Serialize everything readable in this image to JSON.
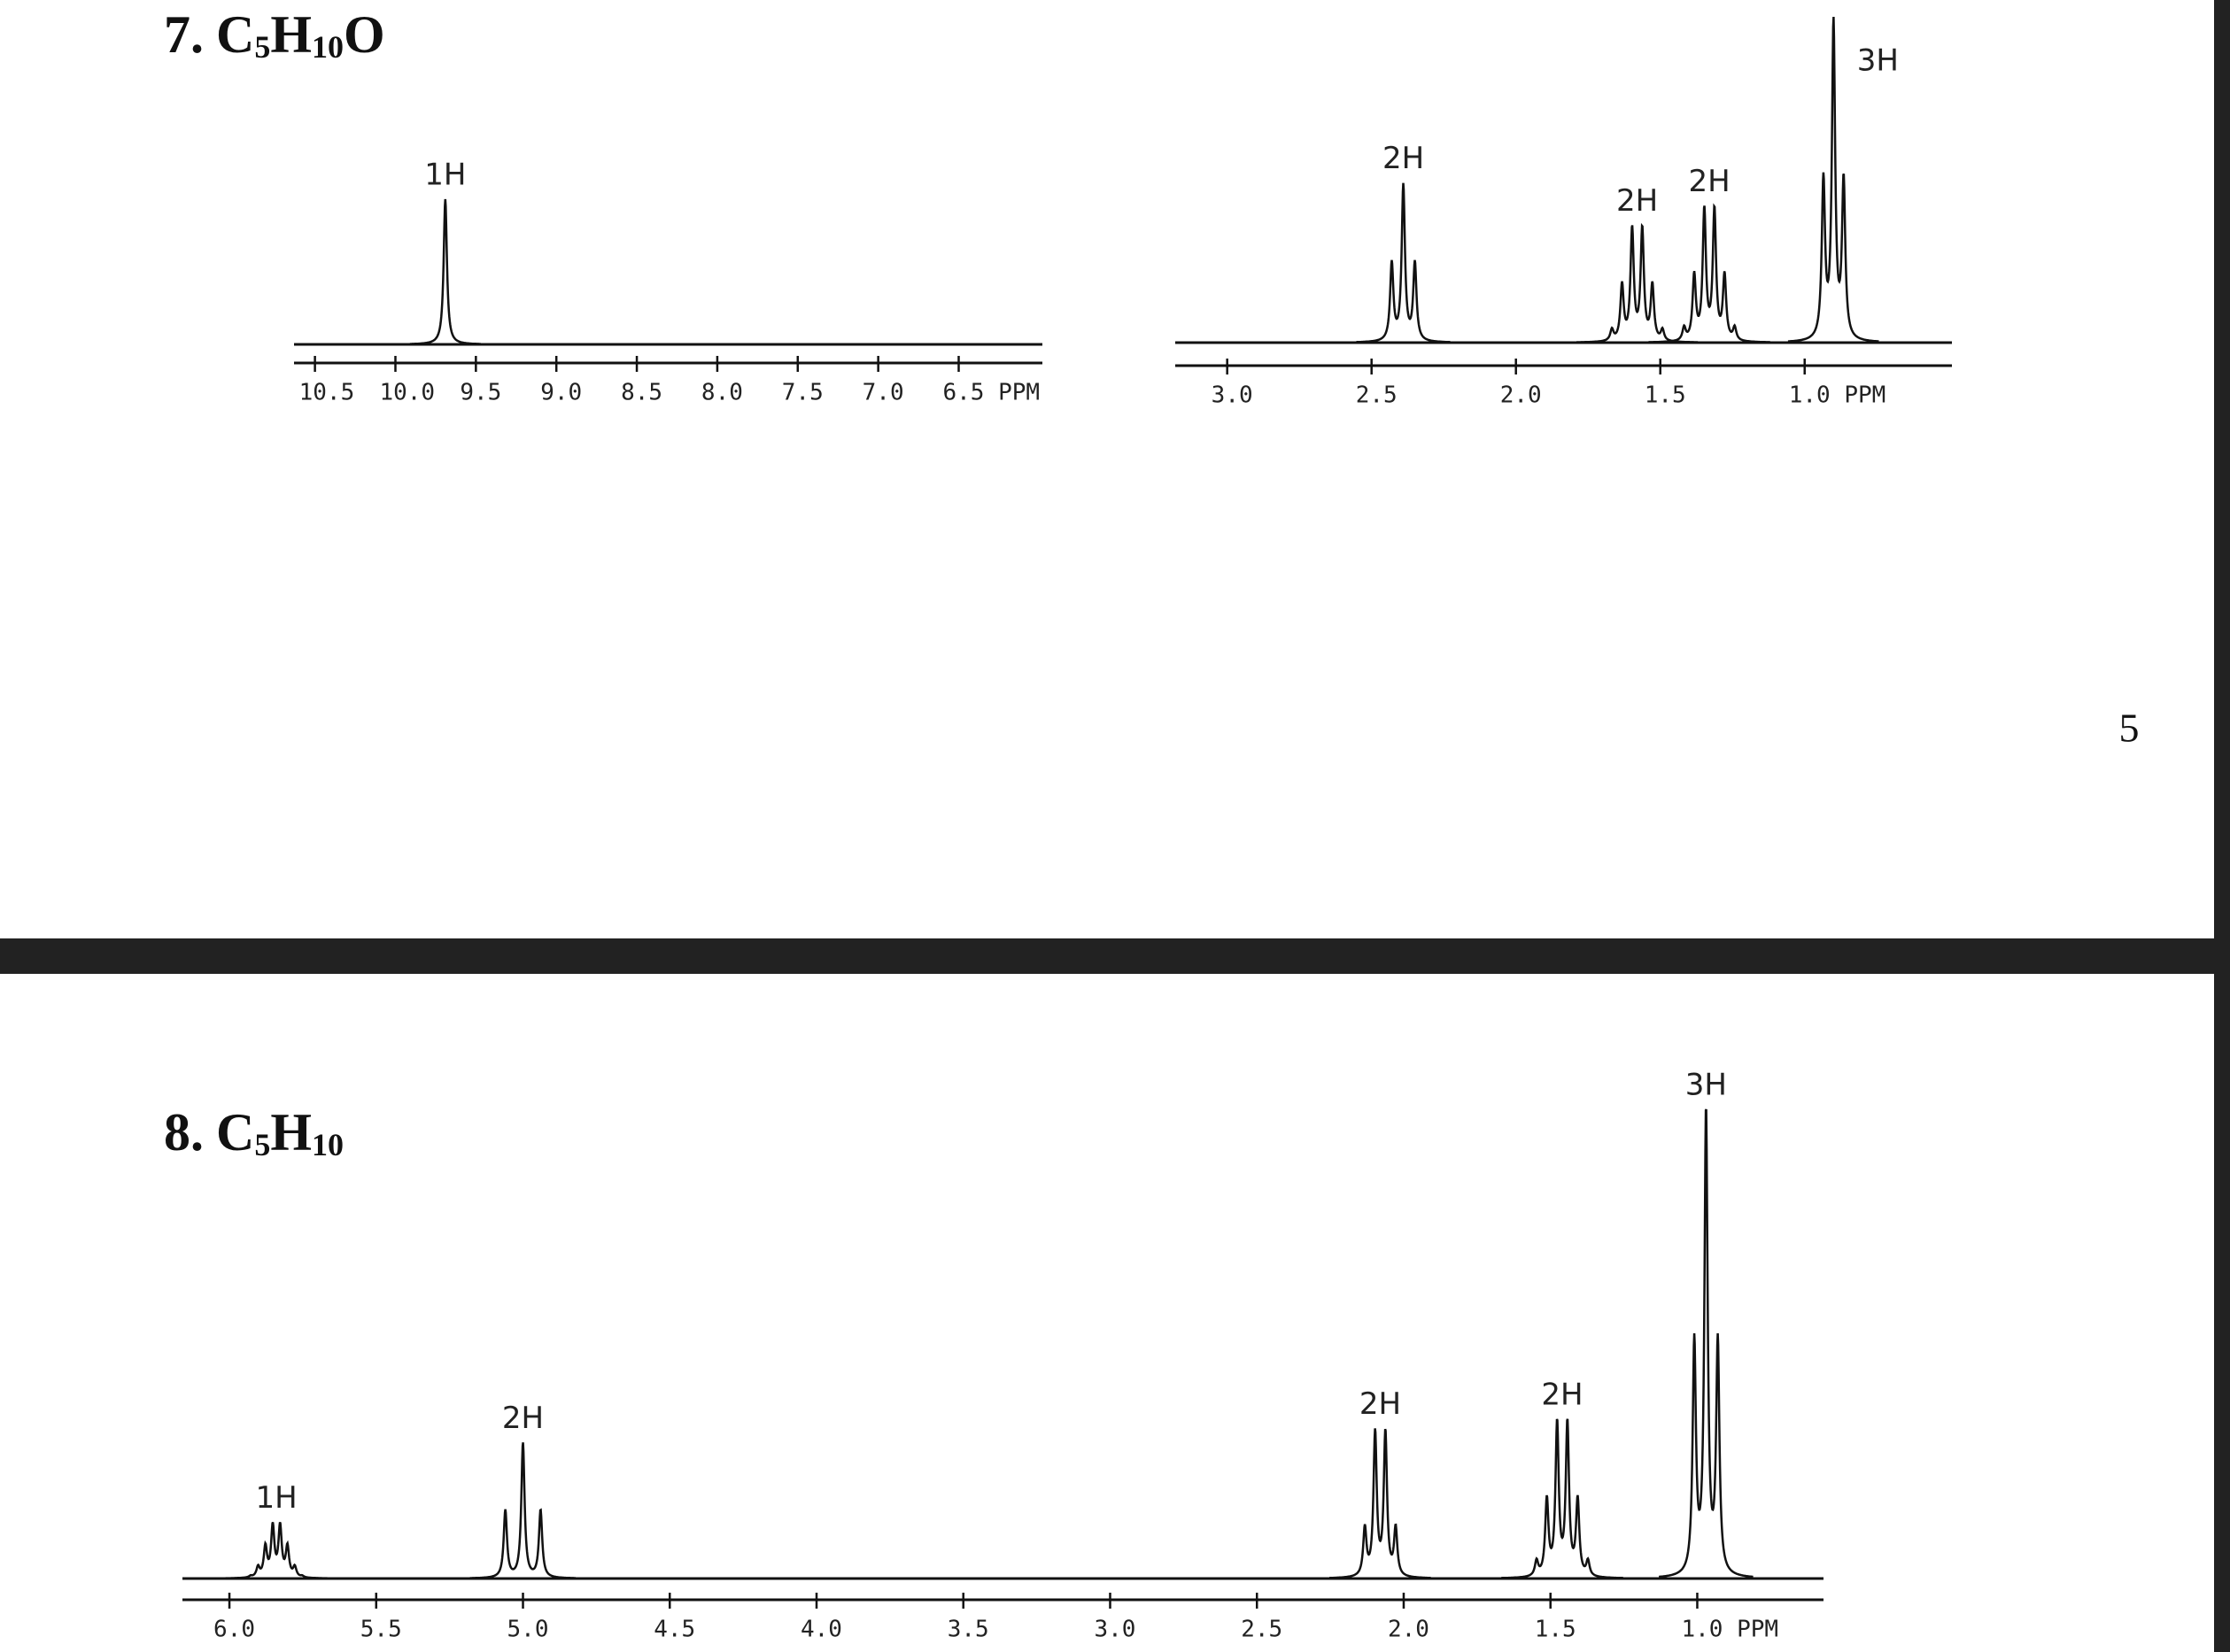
{
  "page_number": "5",
  "problems": [
    {
      "number": "7.",
      "formula": [
        "C",
        "5",
        "H",
        "10",
        "O"
      ],
      "spectra": [
        {
          "xlim": [
            10.63,
            5.98
          ],
          "xticks": [
            {
              "value": 10.5,
              "label": "10.5"
            },
            {
              "value": 10,
              "label": "10.0"
            },
            {
              "value": 9.5,
              "label": "9.5"
            },
            {
              "value": 9,
              "label": "9.0"
            },
            {
              "value": 8.5,
              "label": "8.5"
            },
            {
              "value": 8,
              "label": "8.0"
            },
            {
              "value": 7.5,
              "label": "7.5"
            },
            {
              "value": 7,
              "label": "7.0"
            },
            {
              "value": 6.5,
              "label": "6.5 PPM"
            }
          ],
          "peaks": [
            {
              "ppm": 9.69,
              "lines": 1,
              "spacing": 0,
              "intensity": 100,
              "label": "1H"
            }
          ]
        },
        {
          "xlim": [
            3.18,
            0.49
          ],
          "xticks": [
            {
              "value": 3,
              "label": "3.0"
            },
            {
              "value": 2.5,
              "label": "2.5"
            },
            {
              "value": 2,
              "label": "2.0"
            },
            {
              "value": 1.5,
              "label": "1.5"
            },
            {
              "value": 1,
              "label": "1.0 PPM"
            }
          ],
          "peaks": [
            {
              "ppm": 2.39,
              "lines": 3,
              "spacing": 0.04,
              "intensity": 49,
              "label": "2H"
            },
            {
              "ppm": 1.58,
              "lines": 6,
              "spacing": 0.035,
              "intensity": 36,
              "label": "2H"
            },
            {
              "ppm": 1.33,
              "lines": 6,
              "spacing": 0.035,
              "intensity": 42,
              "label": "2H"
            },
            {
              "ppm": 0.9,
              "lines": 3,
              "spacing": 0.035,
              "intensity": 100,
              "label": "3H"
            }
          ]
        }
      ]
    },
    {
      "number": "8.",
      "formula": [
        "C",
        "5",
        "H",
        "10"
      ],
      "spectra": [
        {
          "xlim": [
            6.16,
            0.57
          ],
          "xticks": [
            {
              "value": 6,
              "label": "6.0"
            },
            {
              "value": 5.5,
              "label": "5.5"
            },
            {
              "value": 5,
              "label": "5.0"
            },
            {
              "value": 4.5,
              "label": "4.5"
            },
            {
              "value": 4,
              "label": "4.0"
            },
            {
              "value": 3.5,
              "label": "3.5"
            },
            {
              "value": 3,
              "label": "3.0"
            },
            {
              "value": 2.5,
              "label": "2.5"
            },
            {
              "value": 2,
              "label": "2.0"
            },
            {
              "value": 1.5,
              "label": "1.5"
            },
            {
              "value": 1,
              "label": "1.0 PPM"
            }
          ],
          "peaks": [
            {
              "ppm": 5.84,
              "lines": 8,
              "spacing": 0.025,
              "intensity": 12,
              "label": "1H"
            },
            {
              "ppm": 5.0,
              "lines": 3,
              "spacing": 0.06,
              "intensity": 29,
              "label": "2H"
            },
            {
              "ppm": 2.08,
              "lines": 4,
              "spacing": 0.035,
              "intensity": 32,
              "label": "2H"
            },
            {
              "ppm": 1.46,
              "lines": 6,
              "spacing": 0.035,
              "intensity": 34,
              "label": "2H"
            },
            {
              "ppm": 0.97,
              "lines": 3,
              "spacing": 0.04,
              "intensity": 100,
              "label": "3H"
            }
          ]
        }
      ]
    }
  ]
}
